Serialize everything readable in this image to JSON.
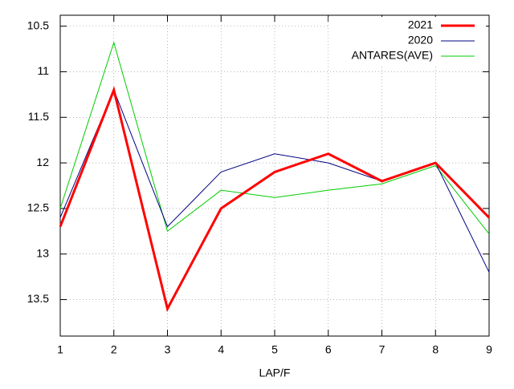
{
  "chart_data": {
    "type": "line",
    "xlabel": "LAP/F",
    "x": [
      1,
      2,
      3,
      4,
      5,
      6,
      7,
      8,
      9
    ],
    "series": [
      {
        "name": "2021",
        "color": "#ff0000",
        "width": 3,
        "values": [
          12.7,
          11.2,
          13.6,
          12.5,
          12.1,
          11.9,
          12.2,
          12.0,
          12.6
        ]
      },
      {
        "name": "2020",
        "color": "#000080",
        "width": 1,
        "values": [
          12.6,
          11.2,
          12.7,
          12.1,
          11.9,
          12.0,
          12.2,
          12.0,
          13.2
        ]
      },
      {
        "name": "ANTARES(AVE)",
        "color": "#00cc00",
        "width": 1,
        "values": [
          12.5,
          10.68,
          12.75,
          12.3,
          12.38,
          12.3,
          12.23,
          12.03,
          12.78
        ]
      }
    ],
    "xlim": [
      1,
      9
    ],
    "xticks": [
      1,
      2,
      3,
      4,
      5,
      6,
      7,
      8,
      9
    ],
    "ylim": [
      10.38,
      13.9
    ],
    "yticks": [
      10.5,
      11,
      11.5,
      12,
      12.5,
      13,
      13.5
    ],
    "y_reversed": true,
    "grid": true,
    "legend": "top-right"
  }
}
